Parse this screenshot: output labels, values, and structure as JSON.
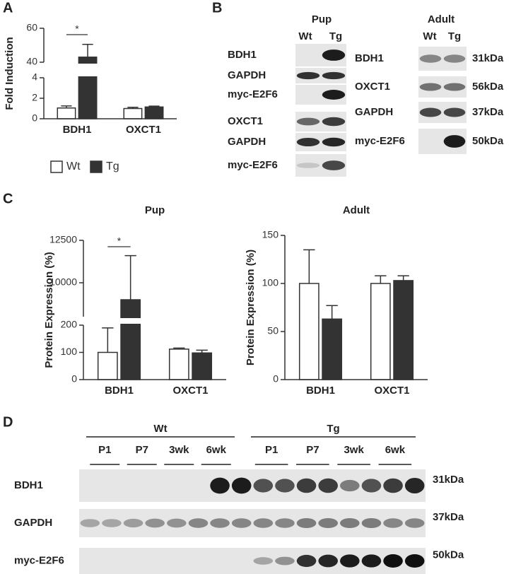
{
  "panel_labels": [
    "A",
    "B",
    "C",
    "D"
  ],
  "chart_data": [
    {
      "type": "bar",
      "y_label": "Fold Induction",
      "categories": [
        "BDH1",
        "OXCT1"
      ],
      "series": [
        {
          "name": "Wt",
          "color": "#ffffff",
          "values": [
            1.05,
            1.0
          ],
          "errors": [
            0.2,
            0.12
          ]
        },
        {
          "name": "Tg",
          "color": "#333333",
          "values": [
            43,
            1.15
          ],
          "errors": [
            7.5,
            0.08
          ]
        }
      ],
      "y_segments": [
        {
          "ylim": [
            0,
            4
          ],
          "yticks": [
            0,
            2,
            4
          ]
        },
        {
          "ylim": [
            40,
            60
          ],
          "yticks": [
            40,
            60
          ]
        }
      ],
      "significance": [
        "*",
        null
      ],
      "legend": "bottom"
    },
    {
      "type": "bar",
      "title": "Pup",
      "y_label": "Protein Expression (%)",
      "categories": [
        "BDH1",
        "OXCT1"
      ],
      "series": [
        {
          "color": "#ffffff",
          "values": [
            100,
            112
          ],
          "errors": [
            90,
            4
          ]
        },
        {
          "color": "#333333",
          "values": [
            9000,
            98
          ],
          "errors": [
            2600,
            10
          ]
        }
      ],
      "y_segments": [
        {
          "ylim": [
            0,
            200
          ],
          "yticks": [
            0,
            100,
            200
          ]
        },
        {
          "ylim": [
            8000,
            12500
          ],
          "yticks": [
            10000,
            12500
          ]
        }
      ],
      "significance": [
        "*",
        null
      ]
    },
    {
      "type": "bar",
      "title": "Adult",
      "y_label": "Protein Expression (%)",
      "categories": [
        "BDH1",
        "OXCT1"
      ],
      "series": [
        {
          "color": "#ffffff",
          "values": [
            100,
            100
          ],
          "errors": [
            35,
            8
          ]
        },
        {
          "color": "#333333",
          "values": [
            63,
            103
          ],
          "errors": [
            14,
            5
          ]
        }
      ],
      "ylim": [
        0,
        150
      ],
      "yticks": [
        0,
        50,
        100,
        150
      ]
    }
  ],
  "blot_b": {
    "pup": {
      "title": "Pup",
      "lanes": [
        "Wt",
        "Tg"
      ],
      "rows": [
        "BDH1",
        "GAPDH",
        "myc-E2F6",
        "OXCT1",
        "GAPDH",
        "myc-E2F6"
      ]
    },
    "adult": {
      "title": "Adult",
      "lanes": [
        "Wt",
        "Tg"
      ],
      "rows": [
        {
          "label": "BDH1",
          "size": "31kDa"
        },
        {
          "label": "OXCT1",
          "size": "56kDa"
        },
        {
          "label": "GAPDH",
          "size": "37kDa"
        },
        {
          "label": "myc-E2F6",
          "size": "50kDa"
        }
      ]
    }
  },
  "blot_d": {
    "groups": [
      "Wt",
      "Tg"
    ],
    "timepoints": [
      [
        "P1",
        "P7",
        "3wk",
        "6wk"
      ],
      [
        "P1",
        "P7",
        "3wk",
        "6wk"
      ]
    ],
    "rows": [
      {
        "label": "BDH1",
        "size": "31kDa"
      },
      {
        "label": "GAPDH",
        "size": "37kDa"
      },
      {
        "label": "myc-E2F6",
        "size": "50kDa"
      }
    ]
  }
}
